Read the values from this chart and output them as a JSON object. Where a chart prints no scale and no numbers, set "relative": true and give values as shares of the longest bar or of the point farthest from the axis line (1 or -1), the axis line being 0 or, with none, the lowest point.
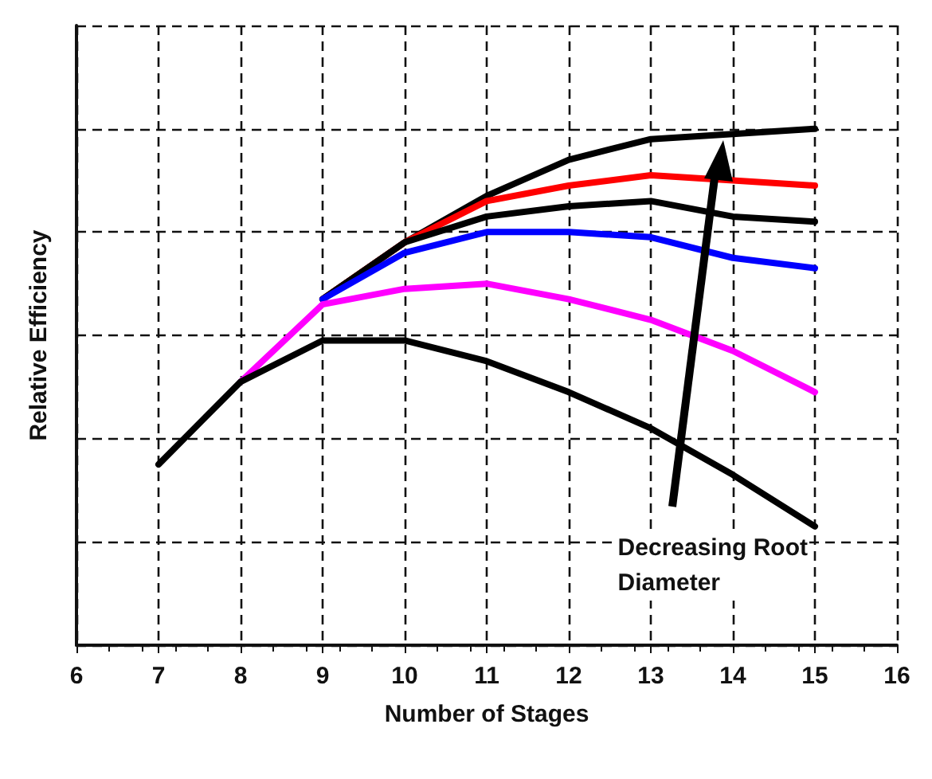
{
  "chart_data": {
    "type": "line",
    "xlabel": "Number of Stages",
    "ylabel": "Relative Efficiency",
    "relative": true,
    "x": [
      7,
      8,
      9,
      10,
      11,
      12,
      13,
      14,
      15
    ],
    "xlim": [
      6,
      16
    ],
    "xticks": [
      6,
      7,
      8,
      9,
      10,
      11,
      12,
      13,
      14,
      15,
      16
    ],
    "grid": true,
    "marker": "none",
    "line_style": "solid",
    "annotations": [
      "Decreasing Root Diameter"
    ],
    "series": [
      {
        "color": "#000000",
        "values": [
          null,
          null,
          0.67,
          0.78,
          0.87,
          0.94,
          0.98,
          0.99,
          1
        ]
      },
      {
        "color": "#ff0000",
        "values": [
          null,
          null,
          0.67,
          0.78,
          0.86,
          0.89,
          0.91,
          0.9,
          0.89
        ]
      },
      {
        "color": "#000000",
        "values": [
          null,
          null,
          0.67,
          0.78,
          0.83,
          0.85,
          0.86,
          0.83,
          0.82
        ]
      },
      {
        "color": "#0000ff",
        "values": [
          null,
          null,
          0.67,
          0.76,
          0.8,
          0.8,
          0.79,
          0.75,
          0.73
        ]
      },
      {
        "color": "#ff00ff",
        "values": [
          null,
          0.51,
          0.66,
          0.69,
          0.7,
          0.67,
          0.63,
          0.57,
          0.49
        ]
      },
      {
        "color": "#000000",
        "values": [
          0.35,
          0.51,
          0.59,
          0.59,
          0.55,
          0.49,
          0.42,
          0.33,
          0.23
        ]
      }
    ]
  }
}
